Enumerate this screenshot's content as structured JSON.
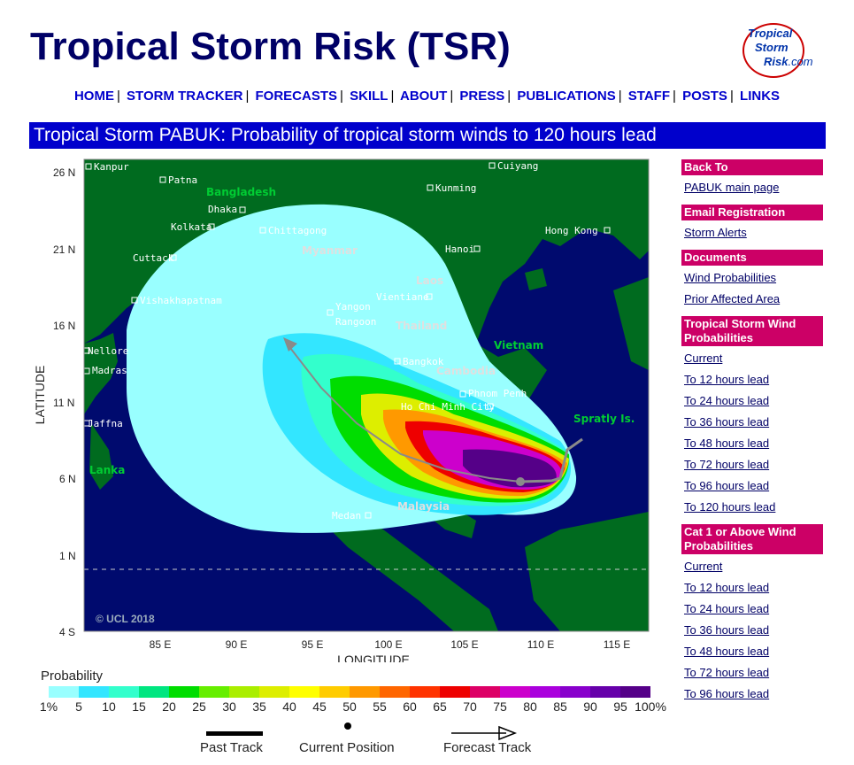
{
  "header": {
    "title": "Tropical Storm Risk (TSR)",
    "logo": {
      "line1": "Tropical",
      "line2": "Storm",
      "line3": "Risk",
      "line3_suffix": ".com"
    }
  },
  "nav": {
    "items": [
      "HOME",
      "STORM TRACKER",
      "FORECASTS",
      "SKILL",
      "ABOUT",
      "PRESS",
      "PUBLICATIONS",
      "STAFF",
      "POSTS",
      "LINKS"
    ],
    "separator": "|"
  },
  "banner": {
    "text": "Tropical Storm PABUK: Probability of tropical storm winds to 120 hours lead"
  },
  "map": {
    "ylabel": "LATITUDE",
    "xlabel": "LONGITUDE",
    "lat_ticks": [
      "26 N",
      "21 N",
      "16 N",
      "11 N",
      "6 N",
      "1 N",
      "4 S"
    ],
    "lon_ticks": [
      "85 E",
      "90 E",
      "95 E",
      "100 E",
      "105 E",
      "110 E",
      "115 E"
    ],
    "copyright": "© UCL 2018",
    "countries": [
      "Bangladesh",
      "Myanmar",
      "Laos",
      "Thailand",
      "Cambodia",
      "Vietnam",
      "Malaysia",
      "Lanka",
      "Spratly Is."
    ],
    "cities": [
      "Kanpur",
      "Patna",
      "Cuiyang",
      "Kunming",
      "Dhaka",
      "Kolkata",
      "Chittagong",
      "Hong Kong",
      "Hanoi",
      "Cuttack",
      "Vientiane",
      "Vishakhapatnam",
      "Yangon",
      "Rangoon",
      "Nellore",
      "Madras",
      "Bangkok",
      "Phnom Penh",
      "Ho Chi Minh City",
      "Jaffna",
      "Medan"
    ],
    "colors": {
      "land": "#006b1f",
      "ocean": "#000a6e",
      "track": "#8a8a8a"
    }
  },
  "legend": {
    "title": "Probability",
    "labels": [
      "1%",
      "5",
      "10",
      "15",
      "20",
      "25",
      "30",
      "35",
      "40",
      "45",
      "50",
      "55",
      "60",
      "65",
      "70",
      "75",
      "80",
      "85",
      "90",
      "95",
      "100%"
    ],
    "colors": [
      "#99ffff",
      "#33e6ff",
      "#33ffcc",
      "#00e680",
      "#00dd00",
      "#66ee00",
      "#aaee00",
      "#ddee00",
      "#ffff00",
      "#ffcc00",
      "#ff9900",
      "#ff6600",
      "#ff3300",
      "#ee0000",
      "#dd0066",
      "#cc00cc",
      "#aa00dd",
      "#8800cc",
      "#6600aa",
      "#550088",
      "#440066"
    ],
    "past_track": "Past Track",
    "current_position": "Current Position",
    "forecast_track": "Forecast Track"
  },
  "sidebar": {
    "groups": [
      {
        "head": "Back To",
        "links": [
          "PABUK main page"
        ]
      },
      {
        "head": "Email Registration",
        "links": [
          "Storm Alerts"
        ]
      },
      {
        "head": "Documents",
        "links": [
          "Wind Probabilities",
          "Prior Affected Area"
        ]
      },
      {
        "head": "Tropical Storm Wind Probabilities",
        "links": [
          "Current",
          "To 12 hours lead",
          "To 24 hours lead",
          "To 36 hours lead",
          "To 48 hours lead",
          "To 72 hours lead",
          "To 96 hours lead",
          "To 120 hours lead"
        ]
      },
      {
        "head": "Cat 1 or Above Wind Probabilities",
        "links": [
          "Current",
          "To 12 hours lead",
          "To 24 hours lead",
          "To 36 hours lead",
          "To 48 hours lead",
          "To 72 hours lead",
          "To 96 hours lead"
        ]
      }
    ]
  }
}
